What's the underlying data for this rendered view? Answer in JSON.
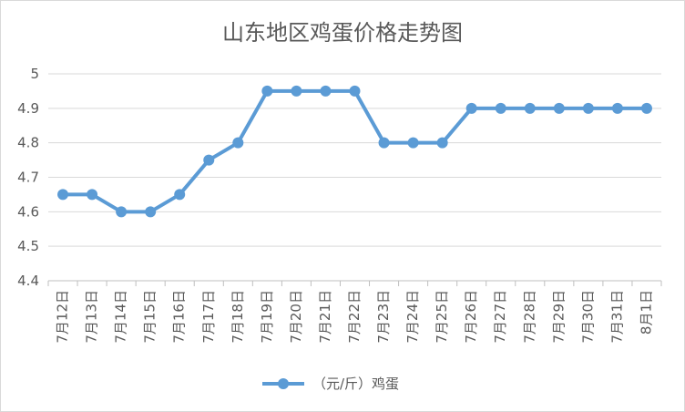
{
  "chart_data": {
    "type": "line",
    "title": "山东地区鸡蛋价格走势图",
    "xlabel": "",
    "ylabel": "",
    "categories": [
      "7月12日",
      "7月13日",
      "7月14日",
      "7月15日",
      "7月16日",
      "7月17日",
      "7月18日",
      "7月19日",
      "7月20日",
      "7月21日",
      "7月22日",
      "7月23日",
      "7月24日",
      "7月25日",
      "7月26日",
      "7月27日",
      "7月28日",
      "7月29日",
      "7月30日",
      "7月31日",
      "8月1日"
    ],
    "series": [
      {
        "name": "（元/斤）鸡蛋",
        "color": "#5b9bd5",
        "values": [
          4.65,
          4.65,
          4.6,
          4.6,
          4.65,
          4.75,
          4.8,
          4.95,
          4.95,
          4.95,
          4.95,
          4.8,
          4.8,
          4.8,
          4.9,
          4.9,
          4.9,
          4.9,
          4.9,
          4.9,
          4.9
        ]
      }
    ],
    "ylim": [
      4.4,
      5
    ],
    "yticks": [
      "4.4",
      "4.5",
      "4.6",
      "4.7",
      "4.8",
      "4.9",
      "5"
    ],
    "grid": true,
    "legend": "bottom"
  }
}
